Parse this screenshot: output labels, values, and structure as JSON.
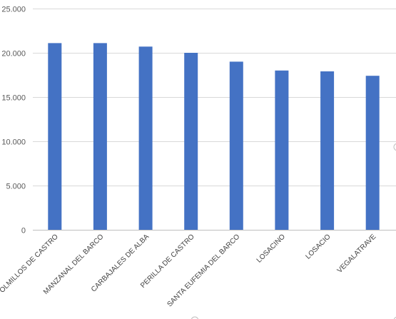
{
  "chart_data": {
    "type": "bar",
    "title": "",
    "xlabel": "",
    "ylabel": "",
    "categories": [
      "OLMILLOS DE CASTRO",
      "MANZANAL DEL BARCO",
      "CARBAJALES DE ALBA",
      "PERILLA DE CASTRO",
      "SANTA EUFEMIA DEL BARCO",
      "LOSACINO",
      "LOSACIO",
      "VEGALATRAVE"
    ],
    "values": [
      21100,
      21100,
      20700,
      20000,
      19000,
      18000,
      17900,
      17400
    ],
    "ylim": [
      0,
      25000
    ],
    "yticks": [
      0,
      5000,
      10000,
      15000,
      20000,
      25000
    ],
    "ytick_labels": [
      "0",
      "5.000",
      "10.000",
      "15.000",
      "20.000",
      "25.000"
    ],
    "grid": true,
    "legend": "none",
    "colors": {
      "bar": "#4472C4",
      "grid": "#d9d9d9",
      "axis": "#bfbfbf"
    }
  }
}
